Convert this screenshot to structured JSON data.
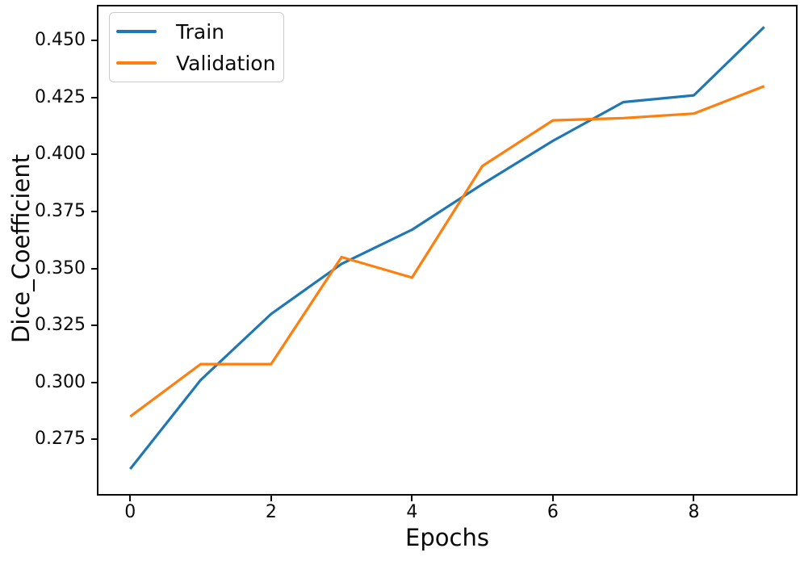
{
  "chart_data": {
    "type": "line",
    "title": "",
    "xlabel": "Epochs",
    "ylabel": "Dice_Coefficient",
    "x": [
      0,
      1,
      2,
      3,
      4,
      5,
      6,
      7,
      8,
      9
    ],
    "series": [
      {
        "name": "Train",
        "color": "#1f77b4",
        "values": [
          0.262,
          0.301,
          0.33,
          0.352,
          0.367,
          0.387,
          0.406,
          0.423,
          0.426,
          0.456
        ]
      },
      {
        "name": "Validation",
        "color": "#ff7f0e",
        "values": [
          0.285,
          0.308,
          0.308,
          0.355,
          0.346,
          0.395,
          0.415,
          0.416,
          0.418,
          0.43
        ]
      }
    ],
    "xlim": [
      -0.45,
      9.45
    ],
    "ylim": [
      0.251,
      0.465
    ],
    "xticks": [
      {
        "value": 0,
        "label": "0"
      },
      {
        "value": 2,
        "label": "2"
      },
      {
        "value": 4,
        "label": "4"
      },
      {
        "value": 6,
        "label": "6"
      },
      {
        "value": 8,
        "label": "8"
      }
    ],
    "yticks": [
      {
        "value": 0.275,
        "label": "0.275"
      },
      {
        "value": 0.3,
        "label": "0.300"
      },
      {
        "value": 0.325,
        "label": "0.325"
      },
      {
        "value": 0.35,
        "label": "0.350"
      },
      {
        "value": 0.375,
        "label": "0.375"
      },
      {
        "value": 0.4,
        "label": "0.400"
      },
      {
        "value": 0.425,
        "label": "0.425"
      },
      {
        "value": 0.45,
        "label": "0.450"
      }
    ],
    "grid": false,
    "legend_position": "upper left",
    "line_width": 3.2,
    "axis_color": "#0a0a0a",
    "background": "#ffffff"
  }
}
